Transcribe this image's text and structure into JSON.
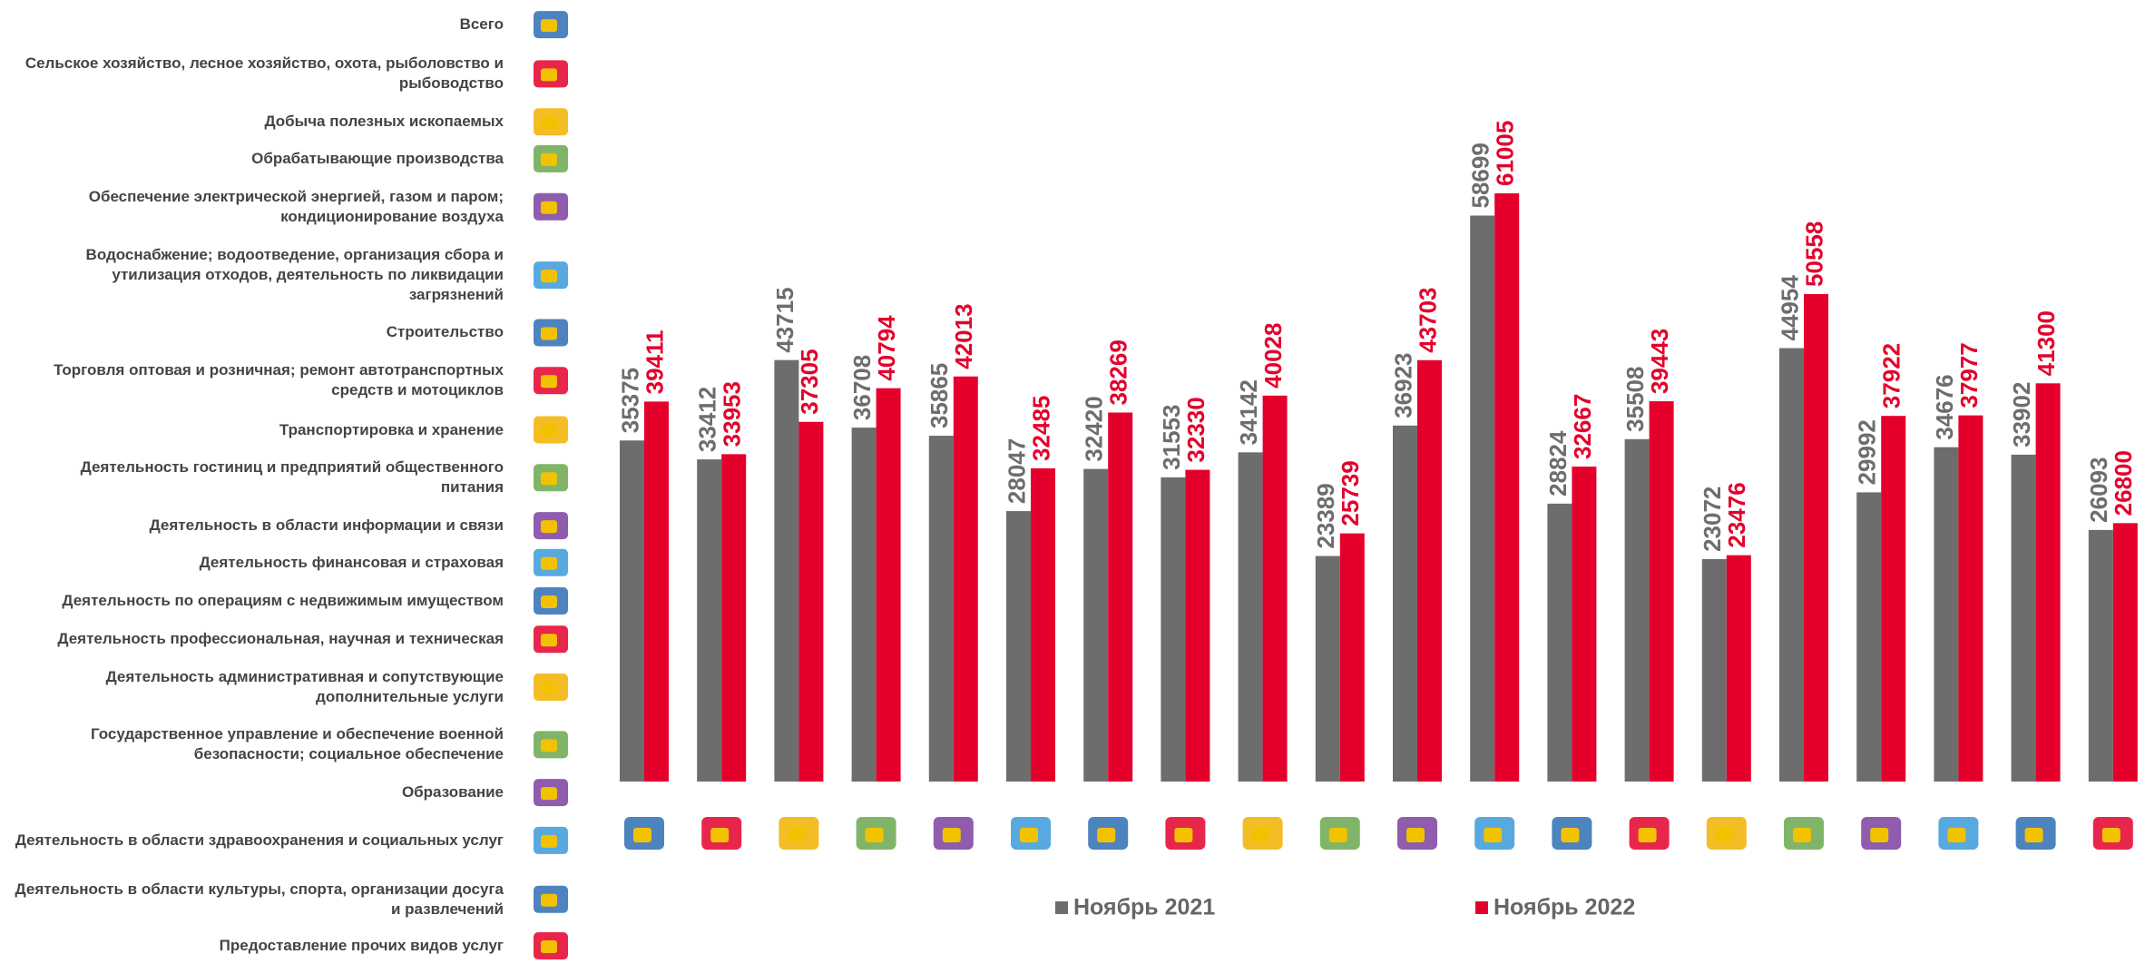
{
  "chart_data": {
    "type": "bar",
    "categories": [
      "Всего",
      "Сельское хозяйство, лесное хозяйство, охота, рыболовство и рыбоводство",
      "Добыча полезных ископаемых",
      "Обрабатывающие производства",
      "Обеспечение электрической энергией, газом и паром; кондиционирование воздуха",
      "Водоснабжение; водоотведение, организация сбора и утилизация отходов, деятельность по ликвидации загрязнений",
      "Строительство",
      "Торговля оптовая и розничная; ремонт автотранспортных средств и мотоциклов",
      "Транспортировка и хранение",
      "Деятельность гостиниц и предприятий общественного питания",
      "Деятельность в области информации и связи",
      "Деятельность финансовая и страховая",
      "Деятельность по операциям с недвижимым имуществом",
      "Деятельность профессиональная, научная и техническая",
      "Деятельность административная и сопутствующие дополнительные услуги",
      "Государственное управление и обеспечение военной безопасности; социальное обеспечение",
      "Образование",
      "Деятельность в области здравоохранения и социальных услуг",
      "Деятельность в области культуры, спорта, организации досуга и развлечений",
      "Предоставление прочих видов услуг"
    ],
    "series": [
      {
        "name": "Ноябрь 2021",
        "color": "#6d6d6d",
        "values": [
          35375,
          33412,
          43715,
          36708,
          35865,
          28047,
          32420,
          31553,
          34142,
          23389,
          36923,
          58699,
          28824,
          35508,
          23072,
          44954,
          29992,
          34676,
          33902,
          26093
        ]
      },
      {
        "name": "Ноябрь 2022",
        "color": "#e4002b",
        "values": [
          39411,
          33953,
          37305,
          40794,
          42013,
          32485,
          38269,
          32330,
          40028,
          25739,
          43703,
          61005,
          32667,
          39443,
          23476,
          50558,
          37922,
          37977,
          41300,
          26800
        ]
      }
    ]
  }
}
